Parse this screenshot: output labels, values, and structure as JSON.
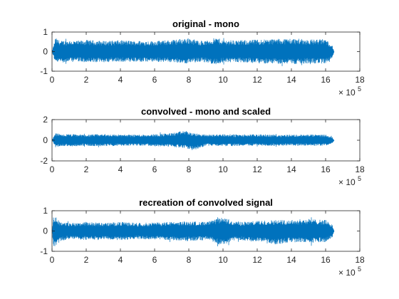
{
  "figure": {
    "background": "#ffffff",
    "line_color": "#0072bd"
  },
  "chart_data": [
    {
      "type": "line",
      "title": "original - mono",
      "xlim": [
        0,
        1800000
      ],
      "ylim": [
        -1,
        1
      ],
      "xticks": [
        0,
        200000,
        400000,
        600000,
        800000,
        1000000,
        1200000,
        1400000,
        1600000,
        1800000
      ],
      "xtick_labels": [
        "0",
        "2",
        "4",
        "6",
        "8",
        "10",
        "12",
        "14",
        "16",
        "18"
      ],
      "yticks": [
        -1,
        0,
        1
      ],
      "ytick_labels": [
        "-1",
        "0",
        "1"
      ],
      "x_multiplier": {
        "base": "× 10",
        "exponent": "5"
      },
      "series": [
        {
          "x_end": 1650000,
          "envelope": [
            [
              0,
              0.0,
              0.0
            ],
            [
              20000,
              0.7,
              -0.6
            ],
            [
              50000,
              0.55,
              -0.55
            ],
            [
              100000,
              0.58,
              -0.55
            ],
            [
              150000,
              0.55,
              -0.5
            ],
            [
              200000,
              0.6,
              -0.58
            ],
            [
              300000,
              0.55,
              -0.55
            ],
            [
              400000,
              0.58,
              -0.52
            ],
            [
              500000,
              0.55,
              -0.55
            ],
            [
              600000,
              0.55,
              -0.52
            ],
            [
              700000,
              0.6,
              -0.55
            ],
            [
              800000,
              0.7,
              -0.62
            ],
            [
              850000,
              0.58,
              -0.55
            ],
            [
              900000,
              0.55,
              -0.55
            ],
            [
              960000,
              0.72,
              -0.68
            ],
            [
              1000000,
              0.6,
              -0.55
            ],
            [
              1100000,
              0.58,
              -0.55
            ],
            [
              1200000,
              0.62,
              -0.6
            ],
            [
              1300000,
              0.65,
              -0.62
            ],
            [
              1400000,
              0.68,
              -0.65
            ],
            [
              1500000,
              0.62,
              -0.6
            ],
            [
              1600000,
              0.65,
              -0.62
            ],
            [
              1640000,
              0.3,
              -0.28
            ],
            [
              1650000,
              0.0,
              0.0
            ]
          ]
        }
      ]
    },
    {
      "type": "line",
      "title": "convolved - mono and scaled",
      "xlim": [
        0,
        1800000
      ],
      "ylim": [
        -2,
        2
      ],
      "xticks": [
        0,
        200000,
        400000,
        600000,
        800000,
        1000000,
        1200000,
        1400000,
        1600000,
        1800000
      ],
      "xtick_labels": [
        "0",
        "2",
        "4",
        "6",
        "8",
        "10",
        "12",
        "14",
        "16",
        "18"
      ],
      "yticks": [
        -2,
        0,
        2
      ],
      "ytick_labels": [
        "-2",
        "0",
        "2"
      ],
      "x_multiplier": {
        "base": "× 10",
        "exponent": "5"
      },
      "series": [
        {
          "x_end": 1650000,
          "envelope": [
            [
              0,
              0.0,
              0.0
            ],
            [
              20000,
              0.7,
              -0.7
            ],
            [
              50000,
              0.55,
              -0.55
            ],
            [
              100000,
              0.6,
              -0.6
            ],
            [
              200000,
              0.55,
              -0.55
            ],
            [
              300000,
              0.6,
              -0.58
            ],
            [
              400000,
              0.55,
              -0.55
            ],
            [
              500000,
              0.55,
              -0.52
            ],
            [
              600000,
              0.6,
              -0.58
            ],
            [
              700000,
              0.7,
              -0.65
            ],
            [
              780000,
              0.95,
              -0.75
            ],
            [
              820000,
              0.7,
              -1.0
            ],
            [
              900000,
              0.55,
              -0.55
            ],
            [
              1000000,
              0.6,
              -0.58
            ],
            [
              1100000,
              0.55,
              -0.55
            ],
            [
              1200000,
              0.58,
              -0.55
            ],
            [
              1300000,
              0.55,
              -0.55
            ],
            [
              1400000,
              0.55,
              -0.52
            ],
            [
              1500000,
              0.55,
              -0.55
            ],
            [
              1600000,
              0.55,
              -0.55
            ],
            [
              1640000,
              0.3,
              -0.3
            ],
            [
              1650000,
              0.0,
              0.0
            ]
          ]
        }
      ]
    },
    {
      "type": "line",
      "title": "recreation of convolved signal",
      "xlim": [
        0,
        1800000
      ],
      "ylim": [
        -1,
        1
      ],
      "xticks": [
        0,
        200000,
        400000,
        600000,
        800000,
        1000000,
        1200000,
        1400000,
        1600000,
        1800000
      ],
      "xtick_labels": [
        "0",
        "2",
        "4",
        "6",
        "8",
        "10",
        "12",
        "14",
        "16",
        "18"
      ],
      "yticks": [
        -1,
        0,
        1
      ],
      "ytick_labels": [
        "-1",
        "0",
        "1"
      ],
      "x_multiplier": {
        "base": "× 10",
        "exponent": "5"
      },
      "series": [
        {
          "x_end": 1650000,
          "envelope": [
            [
              0,
              0.0,
              0.0
            ],
            [
              10000,
              0.8,
              -0.8
            ],
            [
              50000,
              0.45,
              -0.5
            ],
            [
              100000,
              0.4,
              -0.4
            ],
            [
              200000,
              0.45,
              -0.45
            ],
            [
              300000,
              0.4,
              -0.42
            ],
            [
              400000,
              0.45,
              -0.45
            ],
            [
              500000,
              0.4,
              -0.4
            ],
            [
              600000,
              0.42,
              -0.42
            ],
            [
              700000,
              0.45,
              -0.45
            ],
            [
              800000,
              0.48,
              -0.5
            ],
            [
              900000,
              0.45,
              -0.45
            ],
            [
              950000,
              0.55,
              -0.55
            ],
            [
              990000,
              0.7,
              -0.75
            ],
            [
              1050000,
              0.5,
              -0.5
            ],
            [
              1100000,
              0.45,
              -0.45
            ],
            [
              1200000,
              0.5,
              -0.55
            ],
            [
              1300000,
              0.55,
              -0.7
            ],
            [
              1400000,
              0.55,
              -0.55
            ],
            [
              1500000,
              0.6,
              -0.6
            ],
            [
              1600000,
              0.55,
              -0.55
            ],
            [
              1640000,
              0.3,
              -0.3
            ],
            [
              1650000,
              0.0,
              0.0
            ]
          ]
        }
      ]
    }
  ]
}
